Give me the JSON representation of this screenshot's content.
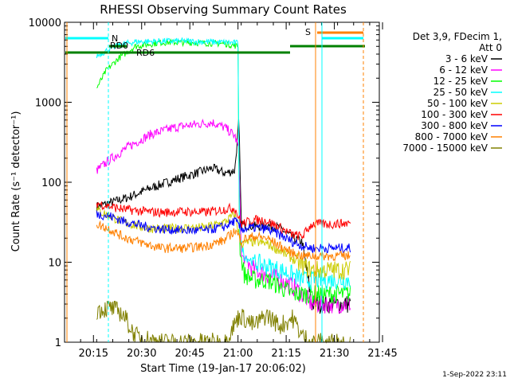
{
  "chart_data": {
    "type": "line",
    "title": "RHESSI Observing Summary Count Rates",
    "xlabel": "Start Time (19-Jan-17 20:06:02)",
    "ylabel": "Count Rate (s⁻¹ detector⁻¹)",
    "y_scale": "log",
    "ylim": [
      1,
      10000
    ],
    "xlim_minutes_since_start": [
      0,
      98
    ],
    "x_ticks": [
      {
        "label": "20:15",
        "minute": 9
      },
      {
        "label": "20:30",
        "minute": 24
      },
      {
        "label": "20:45",
        "minute": 39
      },
      {
        "label": "21:00",
        "minute": 54
      },
      {
        "label": "21:15",
        "minute": 69
      },
      {
        "label": "21:30",
        "minute": 84
      },
      {
        "label": "21:45",
        "minute": 99
      }
    ],
    "y_ticks": [
      {
        "label": "1",
        "value": 1
      },
      {
        "label": "10",
        "value": 10
      },
      {
        "label": "100",
        "value": 100
      },
      {
        "label": "1000",
        "value": 1000
      },
      {
        "label": "10000",
        "value": 10000
      }
    ],
    "legend_header": [
      "Det 3,9, FDecim 1,",
      "Att 0"
    ],
    "legend_position": "right",
    "timestamp": "1-Sep-2022 23:11",
    "series": [
      {
        "name": "3 - 6 keV",
        "color": "#000000",
        "points": [
          [
            10,
            50
          ],
          [
            14,
            55
          ],
          [
            20,
            65
          ],
          [
            27,
            85
          ],
          [
            35,
            110
          ],
          [
            41,
            130
          ],
          [
            46,
            150
          ],
          [
            50,
            130
          ],
          [
            53,
            140
          ],
          [
            54.3,
            600
          ],
          [
            55,
            30
          ],
          [
            59,
            28
          ],
          [
            63,
            29
          ],
          [
            67,
            27
          ],
          [
            71,
            20
          ],
          [
            74,
            18
          ],
          [
            77,
            3
          ],
          [
            84,
            3
          ],
          [
            89,
            3
          ]
        ]
      },
      {
        "name": "6 - 12 keV",
        "color": "#ff00ff",
        "points": [
          [
            10,
            140
          ],
          [
            14,
            190
          ],
          [
            20,
            280
          ],
          [
            27,
            400
          ],
          [
            35,
            490
          ],
          [
            41,
            530
          ],
          [
            46,
            560
          ],
          [
            50,
            480
          ],
          [
            53,
            380
          ],
          [
            54.3,
            260
          ],
          [
            55,
            12
          ],
          [
            59,
            8
          ],
          [
            63,
            7
          ],
          [
            67,
            6
          ],
          [
            71,
            5
          ],
          [
            74,
            4
          ],
          [
            77,
            3
          ],
          [
            84,
            3
          ],
          [
            89,
            3
          ]
        ]
      },
      {
        "name": "12 - 25 keV",
        "color": "#00ff00",
        "points": [
          [
            10,
            1500
          ],
          [
            13,
            2500
          ],
          [
            17,
            3600
          ],
          [
            22,
            5000
          ],
          [
            30,
            5600
          ],
          [
            38,
            5600
          ],
          [
            44,
            5500
          ],
          [
            50,
            5400
          ],
          [
            54,
            5000
          ],
          [
            54.5,
            15
          ],
          [
            56,
            7
          ],
          [
            59,
            6
          ],
          [
            63,
            6
          ],
          [
            67,
            5
          ],
          [
            71,
            4
          ],
          [
            74,
            4
          ],
          [
            77,
            4
          ],
          [
            84,
            4
          ],
          [
            89,
            4
          ]
        ]
      },
      {
        "name": "25 - 50 keV",
        "color": "#00ffff",
        "points": [
          [
            10,
            3800
          ],
          [
            13,
            4400
          ],
          [
            17,
            5200
          ],
          [
            22,
            5700
          ],
          [
            30,
            5800
          ],
          [
            38,
            5800
          ],
          [
            44,
            5700
          ],
          [
            50,
            5600
          ],
          [
            54,
            5500
          ],
          [
            54.5,
            20
          ],
          [
            56,
            12
          ],
          [
            59,
            10
          ],
          [
            63,
            9
          ],
          [
            67,
            8
          ],
          [
            71,
            7
          ],
          [
            74,
            6
          ],
          [
            77,
            6
          ],
          [
            84,
            6
          ],
          [
            89,
            6
          ]
        ]
      },
      {
        "name": "50 - 100 keV",
        "color": "#cccc00",
        "points": [
          [
            10,
            45
          ],
          [
            14,
            38
          ],
          [
            18,
            32
          ],
          [
            25,
            27
          ],
          [
            30,
            26
          ],
          [
            38,
            27
          ],
          [
            44,
            27
          ],
          [
            50,
            32
          ],
          [
            53,
            40
          ],
          [
            55,
            17
          ],
          [
            59,
            18
          ],
          [
            63,
            17
          ],
          [
            67,
            14
          ],
          [
            71,
            11
          ],
          [
            74,
            9
          ],
          [
            77,
            8
          ],
          [
            84,
            8
          ],
          [
            89,
            8
          ]
        ]
      },
      {
        "name": "100 - 300 keV",
        "color": "#ff0000",
        "points": [
          [
            10,
            55
          ],
          [
            14,
            50
          ],
          [
            18,
            46
          ],
          [
            25,
            43
          ],
          [
            30,
            42
          ],
          [
            38,
            43
          ],
          [
            44,
            42
          ],
          [
            50,
            46
          ],
          [
            53,
            48
          ],
          [
            55,
            30
          ],
          [
            59,
            34
          ],
          [
            63,
            33
          ],
          [
            67,
            27
          ],
          [
            71,
            22
          ],
          [
            74,
            21
          ],
          [
            77,
            30
          ],
          [
            84,
            30
          ],
          [
            89,
            31
          ]
        ]
      },
      {
        "name": "300 - 800 keV",
        "color": "#0000ff",
        "points": [
          [
            10,
            40
          ],
          [
            14,
            38
          ],
          [
            18,
            33
          ],
          [
            25,
            28
          ],
          [
            30,
            26
          ],
          [
            38,
            25
          ],
          [
            44,
            25
          ],
          [
            50,
            28
          ],
          [
            53,
            33
          ],
          [
            55,
            26
          ],
          [
            59,
            27
          ],
          [
            63,
            26
          ],
          [
            67,
            22
          ],
          [
            71,
            18
          ],
          [
            74,
            16
          ],
          [
            77,
            15
          ],
          [
            84,
            15
          ],
          [
            89,
            15
          ]
        ]
      },
      {
        "name": "800 - 7000 keV",
        "color": "#ff8000",
        "points": [
          [
            10,
            30
          ],
          [
            14,
            26
          ],
          [
            18,
            21
          ],
          [
            25,
            17
          ],
          [
            30,
            15
          ],
          [
            38,
            15
          ],
          [
            44,
            16
          ],
          [
            50,
            19
          ],
          [
            53,
            25
          ],
          [
            55,
            19
          ],
          [
            59,
            21
          ],
          [
            63,
            20
          ],
          [
            67,
            16
          ],
          [
            71,
            13
          ],
          [
            74,
            12
          ],
          [
            77,
            12
          ],
          [
            84,
            12
          ],
          [
            89,
            12
          ]
        ]
      },
      {
        "name": "7000 - 15000 keV",
        "color": "#808000",
        "points": [
          [
            10,
            2.5
          ],
          [
            14,
            2.7
          ],
          [
            18,
            2.3
          ],
          [
            22,
            1.2
          ],
          [
            30,
            1
          ],
          [
            38,
            1
          ],
          [
            50,
            1
          ],
          [
            54.5,
            2.2
          ],
          [
            59,
            1.6
          ],
          [
            63,
            2.2
          ],
          [
            67,
            1.6
          ],
          [
            71,
            2
          ],
          [
            74,
            1.2
          ],
          [
            77,
            1
          ],
          [
            89,
            1
          ]
        ]
      }
    ],
    "annotations": [
      {
        "label": "N",
        "color": "#00cccc",
        "position": "top"
      },
      {
        "label": "RD0",
        "color": "#006600",
        "position": "top"
      },
      {
        "label": "RD6",
        "color": "#008000",
        "position": "top"
      },
      {
        "label": "S",
        "color": "#ff8000",
        "position": "top"
      }
    ]
  }
}
